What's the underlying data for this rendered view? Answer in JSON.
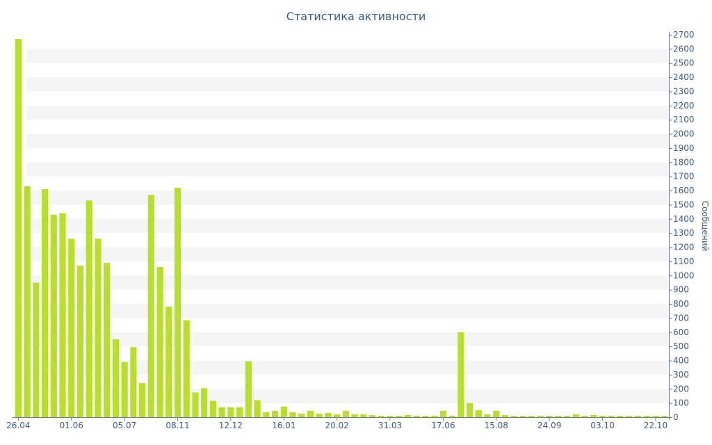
{
  "chart_data": {
    "type": "bar",
    "title": "Статистика активности",
    "xlabel": "",
    "ylabel": "Сообщений",
    "ylim": [
      0,
      2700
    ],
    "yticks": [
      0,
      100,
      200,
      300,
      400,
      500,
      600,
      700,
      800,
      900,
      1000,
      1100,
      1200,
      1300,
      1400,
      1500,
      1600,
      1700,
      1800,
      1900,
      2000,
      2100,
      2200,
      2300,
      2400,
      2500,
      2600,
      2700
    ],
    "x_tick_labels": [
      {
        "index": 0,
        "label": "26.04"
      },
      {
        "index": 6,
        "label": "01.06"
      },
      {
        "index": 12,
        "label": "05.07"
      },
      {
        "index": 18,
        "label": "08.11"
      },
      {
        "index": 24,
        "label": "12.12"
      },
      {
        "index": 30,
        "label": "16.01"
      },
      {
        "index": 36,
        "label": "20.02"
      },
      {
        "index": 42,
        "label": "31.03"
      },
      {
        "index": 48,
        "label": "17.06"
      },
      {
        "index": 54,
        "label": "15.08"
      },
      {
        "index": 60,
        "label": "24.09"
      },
      {
        "index": 66,
        "label": "03.10"
      },
      {
        "index": 72,
        "label": "22.10"
      }
    ],
    "values": [
      2670,
      1630,
      950,
      1610,
      1430,
      1440,
      1260,
      1070,
      1530,
      1260,
      1090,
      550,
      390,
      495,
      240,
      1570,
      1060,
      780,
      1620,
      685,
      175,
      205,
      115,
      70,
      70,
      70,
      395,
      120,
      35,
      45,
      75,
      35,
      25,
      45,
      25,
      30,
      20,
      45,
      20,
      20,
      15,
      10,
      10,
      10,
      15,
      10,
      10,
      10,
      45,
      10,
      600,
      100,
      50,
      20,
      45,
      15,
      10,
      10,
      10,
      10,
      10,
      10,
      10,
      20,
      10,
      15,
      10,
      10,
      10,
      10,
      10,
      10,
      10,
      10
    ],
    "bar_color": "#b8e02a",
    "grid": "horizontal bands",
    "y_axis_position": "right"
  }
}
